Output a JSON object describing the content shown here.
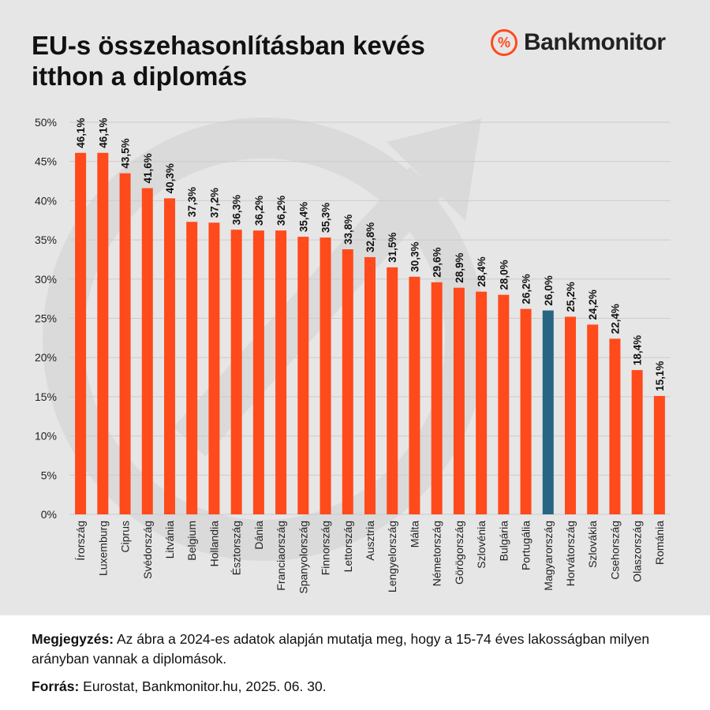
{
  "header": {
    "title": "EU-s összehasonlításban kevés itthon a diplomás",
    "logo_text": "Bankmonitor",
    "logo_mark": "%"
  },
  "footer": {
    "note_label": "Megjegyzés:",
    "note_text": " Az ábra a 2024-es adatok alapján mutatja meg, hogy a 15-74 éves lakosságban milyen arányban vannak a diplomások.",
    "source_label": "Forrás:",
    "source_text": " Eurostat, Bankmonitor.hu, 2025. 06. 30."
  },
  "colors": {
    "bar": "#ff4a1c",
    "highlight": "#276582",
    "background": "#e6e6e6",
    "grid": "#cccccc"
  },
  "chart_data": {
    "type": "bar",
    "categories": [
      "Írország",
      "Luxemburg",
      "Ciprus",
      "Svédország",
      "Litvánia",
      "Belgium",
      "Hollandia",
      "Észtország",
      "Dánia",
      "Franciaország",
      "Spanyolország",
      "Finnország",
      "Lettország",
      "Ausztria",
      "Lengyelország",
      "Málta",
      "Németország",
      "Görögország",
      "Szlovénia",
      "Bulgária",
      "Portugália",
      "Magyarország",
      "Horvátország",
      "Szlovákia",
      "Csehország",
      "Olaszország",
      "Románia"
    ],
    "values": [
      46.1,
      46.1,
      43.5,
      41.6,
      40.3,
      37.3,
      37.2,
      36.3,
      36.2,
      36.2,
      35.4,
      35.3,
      33.8,
      32.8,
      31.5,
      30.3,
      29.6,
      28.9,
      28.4,
      28.0,
      26.2,
      26.0,
      25.2,
      24.2,
      22.4,
      18.4,
      15.1
    ],
    "value_labels": [
      "46,1%",
      "46,1%",
      "43,5%",
      "41,6%",
      "40,3%",
      "37,3%",
      "37,2%",
      "36,3%",
      "36,2%",
      "36,2%",
      "35,4%",
      "35,3%",
      "33,8%",
      "32,8%",
      "31,5%",
      "30,3%",
      "29,6%",
      "28,9%",
      "28,4%",
      "28,0%",
      "26,2%",
      "26,0%",
      "25,2%",
      "24,2%",
      "22,4%",
      "18,4%",
      "15,1%"
    ],
    "highlight_category": "Magyarország",
    "ylim": [
      0,
      50
    ],
    "yticks": [
      "0%",
      "5%",
      "10%",
      "15%",
      "20%",
      "25%",
      "30%",
      "35%",
      "40%",
      "45%",
      "50%"
    ],
    "grid": true,
    "title": "",
    "xlabel": "",
    "ylabel": ""
  }
}
